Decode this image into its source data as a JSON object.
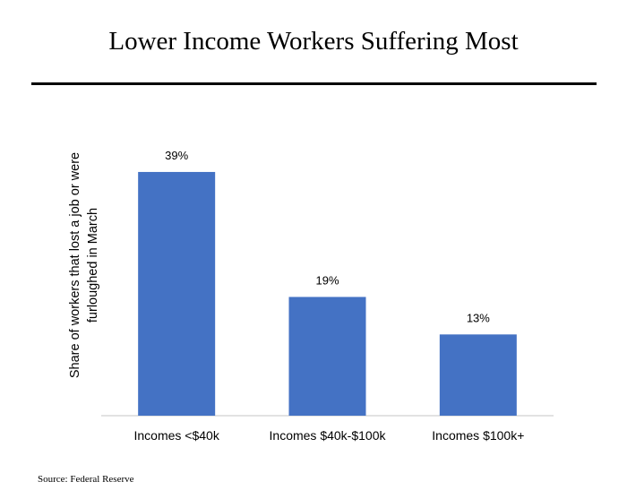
{
  "title": "Lower Income Workers Suffering Most",
  "source": "Source: Federal Reserve",
  "chart_data": {
    "type": "bar",
    "categories": [
      "Incomes <$40k",
      "Incomes $40k-$100k",
      "Incomes $100k+"
    ],
    "values": [
      39,
      19,
      13
    ],
    "value_labels": [
      "39%",
      "19%",
      "13%"
    ],
    "ylabel_lines": [
      "Share of workers that lost a job or were",
      "furloughed in March"
    ],
    "ylim": [
      0,
      41
    ],
    "bar_color": "#4472C4",
    "axis_color": "#D9D9D9",
    "grid": false,
    "legend": "none"
  }
}
